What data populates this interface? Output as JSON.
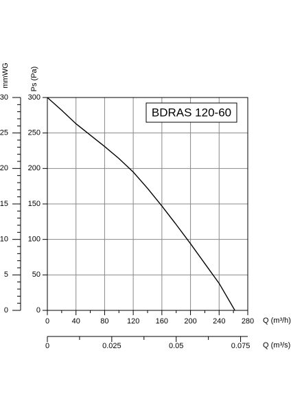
{
  "chart_data": {
    "type": "line",
    "annotation": "BDRAS 120-60",
    "xlabel": "Q (m³/h)",
    "ylabel": "Ps (Pa)",
    "y2label": "mmWG",
    "x2label": "Q (m³/s)",
    "series": [
      {
        "name": "BDRAS 120-60",
        "color": "#000000",
        "x": [
          0,
          20,
          40,
          60,
          80,
          100,
          120,
          140,
          160,
          180,
          200,
          220,
          240,
          262
        ],
        "values": [
          300,
          282,
          263,
          247,
          231,
          214,
          195,
          172,
          147,
          121,
          94,
          66,
          38,
          0
        ]
      }
    ],
    "xlim": [
      0,
      280
    ],
    "xticks": [
      0,
      40,
      80,
      120,
      160,
      200,
      240,
      280
    ],
    "ylim": [
      0,
      300
    ],
    "yticks": [
      0,
      50,
      100,
      150,
      200,
      250,
      300
    ],
    "y2lim": [
      0,
      30
    ],
    "y2ticks": [
      0,
      5,
      10,
      15,
      20,
      25,
      30
    ],
    "x2lim": [
      0,
      0.07778
    ],
    "x2ticks": [
      0,
      0.025,
      0.05,
      0.075
    ],
    "grid": true
  }
}
